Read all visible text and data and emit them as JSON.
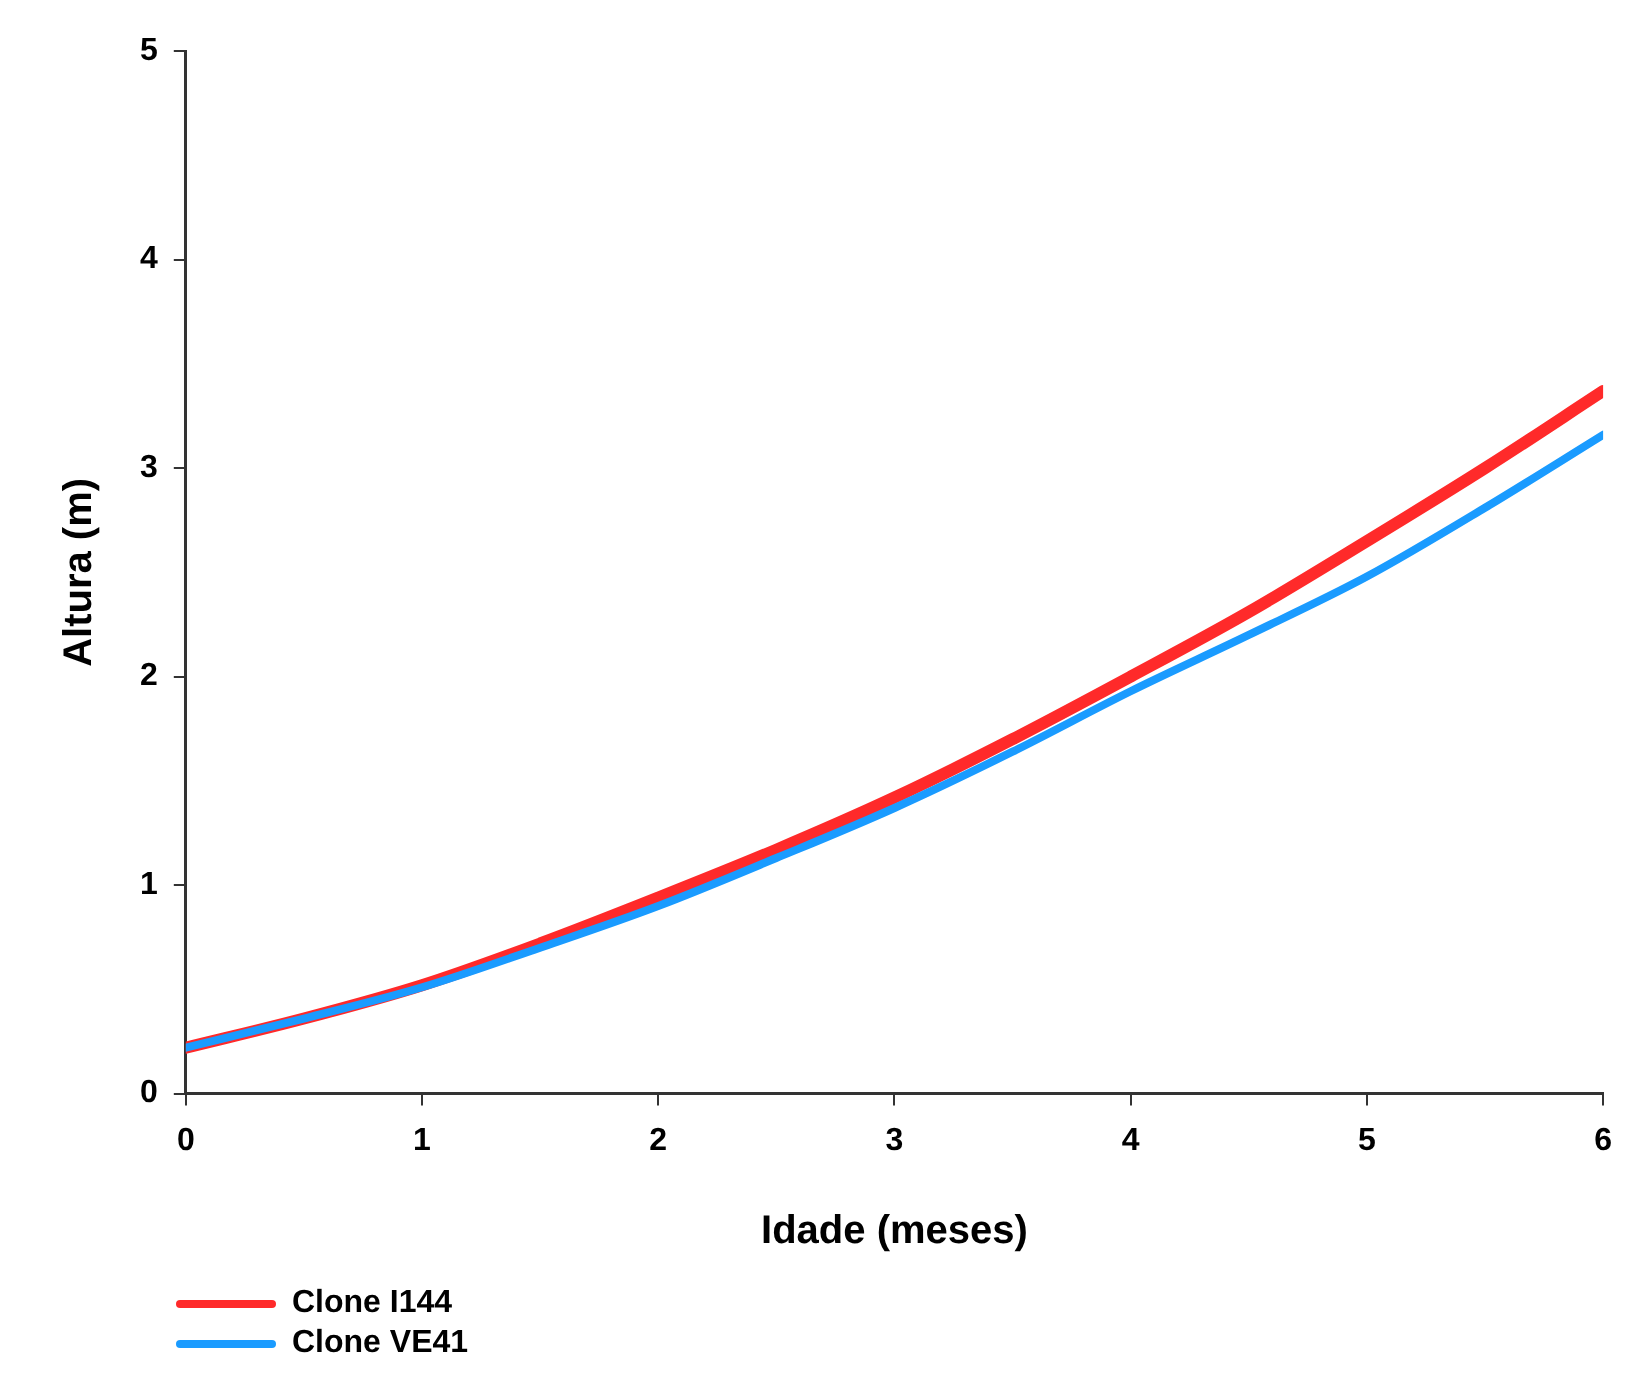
{
  "chart_data": {
    "type": "line",
    "xlabel": "Idade (meses)",
    "ylabel": "Altura (m)",
    "x": [
      0,
      0.5,
      1,
      1.5,
      2,
      2.5,
      3,
      3.5,
      4,
      4.5,
      5,
      5.5,
      6
    ],
    "series": [
      {
        "name": "Clone I144",
        "color": "#ff2a2a",
        "values": [
          0.22,
          0.36,
          0.52,
          0.72,
          0.94,
          1.17,
          1.42,
          1.7,
          2.0,
          2.31,
          2.65,
          3.0,
          3.37
        ]
      },
      {
        "name": "Clone VE41",
        "color": "#1a9bff",
        "values": [
          0.22,
          0.36,
          0.51,
          0.7,
          0.9,
          1.13,
          1.37,
          1.64,
          1.93,
          2.2,
          2.48,
          2.81,
          3.16
        ]
      }
    ],
    "xlim": [
      0,
      6
    ],
    "xticks": [
      0,
      1,
      2,
      3,
      4,
      5,
      6
    ],
    "ylim": [
      0,
      5
    ],
    "yticks": [
      0,
      1,
      2,
      3,
      4,
      5
    ],
    "grid": false,
    "legend": "bottom left",
    "marker": "none",
    "line_style": "solid"
  }
}
